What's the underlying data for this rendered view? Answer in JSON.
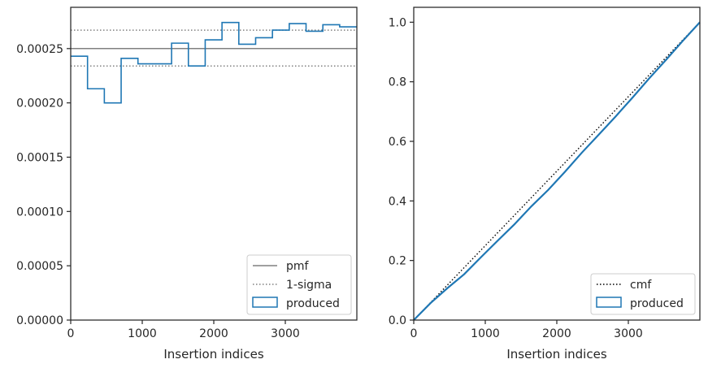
{
  "chart_data": [
    {
      "type": "step",
      "xlabel": "Insertion indices",
      "ylabel": "",
      "xlim": [
        0,
        4000
      ],
      "ylim": [
        0,
        0.000288
      ],
      "xticks": [
        0,
        1000,
        2000,
        3000
      ],
      "xtick_labels": [
        "0",
        "1000",
        "2000",
        "3000"
      ],
      "yticks": [
        0,
        5e-05,
        0.0001,
        0.00015,
        0.0002,
        0.00025
      ],
      "ytick_labels": [
        "0.00000",
        "0.00005",
        "0.00010",
        "0.00015",
        "0.00020",
        "0.00025"
      ],
      "grid": false,
      "legend_position": "lower-right",
      "hlines": [
        {
          "name": "pmf",
          "y": 0.00025,
          "style": "solid",
          "color": "#808080"
        },
        {
          "name": "1-sigma",
          "y": 0.000267,
          "style": "dotted",
          "color": "#808080"
        },
        {
          "name": "",
          "y": 0.000234,
          "style": "dotted",
          "color": "#808080"
        }
      ],
      "series": [
        {
          "name": "produced",
          "color": "#1f77b4",
          "bin_edges": [
            0,
            235,
            470,
            705,
            940,
            1175,
            1410,
            1645,
            1880,
            2115,
            2350,
            2585,
            2820,
            3055,
            3290,
            3525,
            3760,
            4000
          ],
          "values": [
            0.000243,
            0.000213,
            0.0002,
            0.000241,
            0.000236,
            0.000236,
            0.000255,
            0.000234,
            0.000258,
            0.000274,
            0.000254,
            0.00026,
            0.000267,
            0.000273,
            0.000266,
            0.000272,
            0.00027
          ]
        }
      ],
      "legend": [
        "pmf",
        "1-sigma",
        "produced"
      ]
    },
    {
      "type": "line",
      "xlabel": "Insertion indices",
      "ylabel": "",
      "xlim": [
        0,
        4000
      ],
      "ylim": [
        0,
        1.05
      ],
      "xticks": [
        0,
        1000,
        2000,
        3000
      ],
      "xtick_labels": [
        "0",
        "1000",
        "2000",
        "3000"
      ],
      "yticks": [
        0,
        0.2,
        0.4,
        0.6,
        0.8,
        1.0
      ],
      "ytick_labels": [
        "0.0",
        "0.2",
        "0.4",
        "0.6",
        "0.8",
        "1.0"
      ],
      "grid": false,
      "legend_position": "lower-right",
      "series": [
        {
          "name": "cmf",
          "style": "dotted",
          "color": "#000000",
          "x": [
            0,
            4000
          ],
          "y": [
            0,
            1.0
          ]
        },
        {
          "name": "produced",
          "style": "solid",
          "color": "#1f77b4",
          "x": [
            0,
            235,
            470,
            705,
            940,
            1175,
            1410,
            1645,
            1880,
            2115,
            2350,
            2585,
            2820,
            3055,
            3290,
            3525,
            3760,
            4000
          ],
          "y": [
            0,
            0.057,
            0.107,
            0.154,
            0.211,
            0.267,
            0.322,
            0.382,
            0.437,
            0.498,
            0.562,
            0.622,
            0.683,
            0.746,
            0.811,
            0.873,
            0.937,
            1.0
          ]
        }
      ],
      "legend": [
        "cmf",
        "produced"
      ]
    }
  ]
}
